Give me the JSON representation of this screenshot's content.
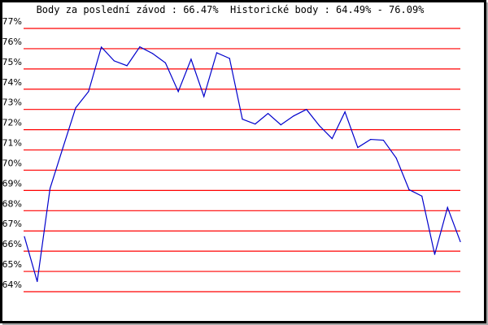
{
  "chart_data": {
    "type": "line",
    "title": "Body za poslední závod : 66.47%  Historické body : 64.49% - 76.09%",
    "xlabel": "",
    "ylabel": "",
    "ylim": [
      64,
      77
    ],
    "yticks": [
      "64%",
      "65%",
      "66%",
      "67%",
      "68%",
      "69%",
      "70%",
      "71%",
      "72%",
      "73%",
      "74%",
      "75%",
      "76%",
      "77%"
    ],
    "grid": true,
    "grid_color": "#ff0000",
    "line_color": "#0000cc",
    "series": [
      {
        "values": [
          66.72,
          64.5,
          69.1,
          71.1,
          73.08,
          73.88,
          76.08,
          75.4,
          75.16,
          76.09,
          75.76,
          75.3,
          73.88,
          75.48,
          73.64,
          75.8,
          75.52,
          72.52,
          72.28,
          72.8,
          72.24,
          72.68,
          73.0,
          72.2,
          71.56,
          72.88,
          71.12,
          71.52,
          71.48,
          70.6,
          69.04,
          68.72,
          65.84,
          68.16,
          66.47
        ]
      }
    ]
  }
}
